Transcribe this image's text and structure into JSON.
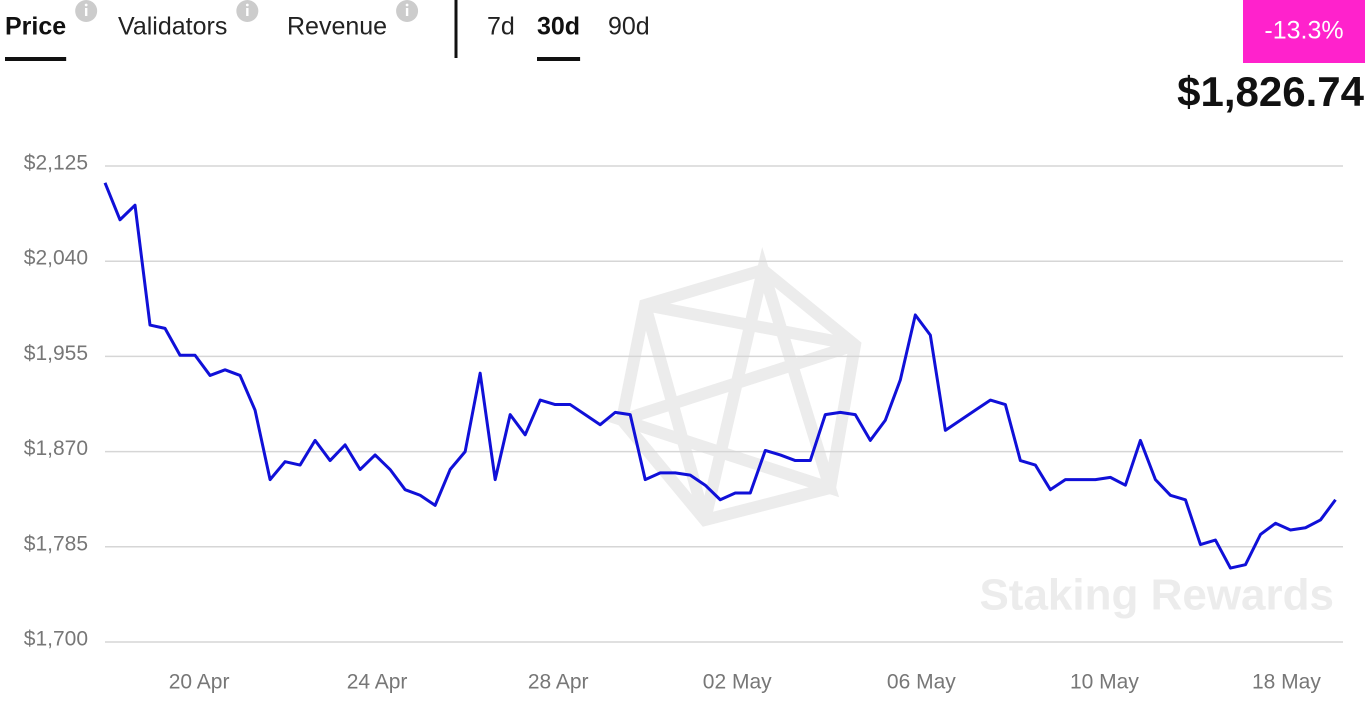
{
  "tabs": [
    "Price",
    "Validators",
    "Revenue"
  ],
  "selected_tab": 0,
  "ranges": [
    "7d",
    "30d",
    "90d"
  ],
  "selected_range": 1,
  "change": "-13.3%",
  "price": "$1,826.74",
  "watermark": "Staking Rewards",
  "chart_data": {
    "type": "line",
    "series": [
      {
        "color": "#1010d8",
        "values": [
          2110,
          2077,
          2090,
          1983,
          1980,
          1956,
          1956,
          1938,
          1943,
          1938,
          1907,
          1845,
          1861,
          1858,
          1880,
          1862,
          1876,
          1854,
          1867,
          1854,
          1836,
          1831,
          1822,
          1854,
          1870,
          1940,
          1845,
          1903,
          1885,
          1916,
          1912,
          1912,
          1903,
          1894,
          1905,
          1903,
          1845,
          1851,
          1851,
          1849,
          1840,
          1827,
          1833,
          1833,
          1871,
          1867,
          1862,
          1862,
          1903,
          1905,
          1903,
          1880,
          1898,
          1934,
          1992,
          1974,
          1889,
          1898,
          1907,
          1916,
          1912,
          1862,
          1858,
          1836,
          1845,
          1845,
          1845,
          1847,
          1840,
          1880,
          1845,
          1831,
          1827,
          1787,
          1791,
          1766,
          1769,
          1796,
          1806,
          1800,
          1802,
          1809,
          1827
        ]
      }
    ],
    "xlim": [
      0,
      82.5
    ],
    "xticks": [
      {
        "value": 6.27,
        "label": "20 Apr"
      },
      {
        "value": 18.13,
        "label": "24 Apr"
      },
      {
        "value": 30.2,
        "label": "28 Apr"
      },
      {
        "value": 42.13,
        "label": "02 May"
      },
      {
        "value": 54.4,
        "label": "06 May"
      },
      {
        "value": 66.6,
        "label": "10 May"
      },
      {
        "value": 78.73,
        "label": "18 May"
      }
    ],
    "ylim": [
      1700,
      2125
    ],
    "yticks": [
      {
        "value": 1700,
        "label": "$1,700"
      },
      {
        "value": 1785,
        "label": "$1,785"
      },
      {
        "value": 1870,
        "label": "$1,870"
      },
      {
        "value": 1955,
        "label": "$1,955"
      },
      {
        "value": 2040,
        "label": "$2,040"
      },
      {
        "value": 2125,
        "label": "$2,125"
      }
    ],
    "grid": true
  }
}
